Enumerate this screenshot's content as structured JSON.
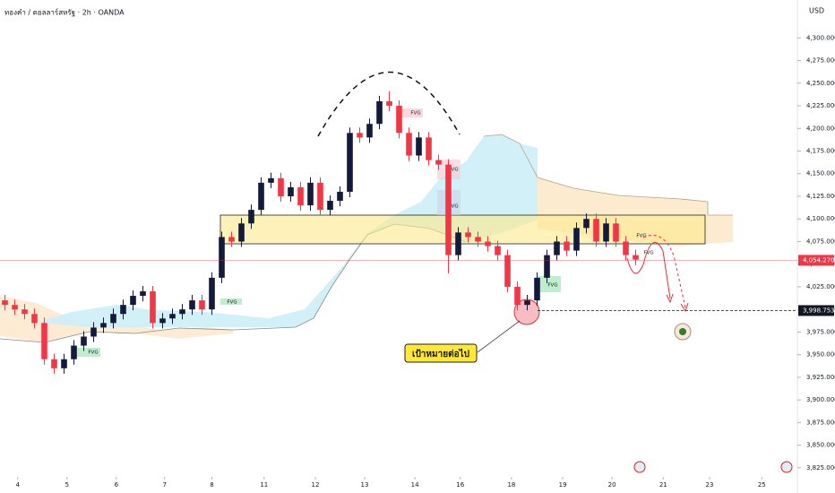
{
  "chart_data": {
    "type": "candlestick",
    "title": "ทองคำ / ดอลลาร์สหรัฐ · 2h · OANDA",
    "currency": "USD",
    "up_color": "#131a3a",
    "down_color": "#f23645",
    "open": [
      4010,
      4005,
      4000,
      3995,
      3985,
      3945,
      3935,
      3945,
      3960,
      3970,
      3980,
      3985,
      3995,
      4005,
      4015,
      4020,
      3985,
      3990,
      3995,
      4000,
      4010,
      4000,
      4035,
      4080,
      4075,
      4095,
      4110,
      4140,
      4145,
      4125,
      4135,
      4115,
      4140,
      4110,
      4120,
      4130,
      4195,
      4190,
      4205,
      4230,
      4225,
      4195,
      4170,
      4190,
      4165,
      4160,
      4060,
      4085,
      4080,
      4075,
      4070,
      4060,
      4025,
      4005,
      4010,
      4035,
      4060,
      4075,
      4065,
      4090,
      4100,
      4075,
      4095,
      4075,
      4060
    ],
    "high": [
      4016,
      4011,
      4006,
      4001,
      3991,
      3951,
      3951,
      3966,
      3976,
      3986,
      3991,
      4001,
      4011,
      4021,
      4026,
      4026,
      3996,
      4001,
      4006,
      4016,
      4016,
      4041,
      4086,
      4086,
      4101,
      4116,
      4146,
      4151,
      4151,
      4141,
      4141,
      4146,
      4146,
      4126,
      4136,
      4201,
      4201,
      4211,
      4236,
      4241,
      4231,
      4201,
      4196,
      4196,
      4171,
      4166,
      4091,
      4091,
      4086,
      4081,
      4076,
      4066,
      4031,
      4016,
      4041,
      4066,
      4081,
      4081,
      4096,
      4106,
      4106,
      4101,
      4101,
      4081,
      4066
    ],
    "low": [
      3999,
      3994,
      3989,
      3979,
      3939,
      3929,
      3929,
      3939,
      3954,
      3964,
      3974,
      3979,
      3989,
      3999,
      4009,
      3979,
      3979,
      3984,
      3989,
      3994,
      3994,
      3994,
      4029,
      4069,
      4069,
      4089,
      4104,
      4134,
      4119,
      4119,
      4109,
      4109,
      4104,
      4104,
      4114,
      4124,
      4184,
      4184,
      4199,
      4219,
      4189,
      4164,
      4164,
      4159,
      4154,
      4040,
      4054,
      4074,
      4069,
      4064,
      4054,
      4019,
      3999,
      3999,
      4004,
      4029,
      4054,
      4059,
      4059,
      4084,
      4069,
      4069,
      4069,
      4054,
      4049
    ],
    "close": [
      4005,
      4000,
      3995,
      3985,
      3945,
      3935,
      3945,
      3960,
      3970,
      3980,
      3985,
      3995,
      4005,
      4015,
      4020,
      3985,
      3990,
      3995,
      4000,
      4010,
      4000,
      4035,
      4080,
      4075,
      4095,
      4110,
      4140,
      4145,
      4125,
      4135,
      4115,
      4140,
      4110,
      4120,
      4130,
      4195,
      4190,
      4205,
      4230,
      4225,
      4195,
      4170,
      4190,
      4165,
      4160,
      4060,
      4085,
      4080,
      4075,
      4070,
      4060,
      4025,
      4005,
      4010,
      4035,
      4060,
      4075,
      4065,
      4090,
      4100,
      4075,
      4095,
      4075,
      4060,
      4055
    ],
    "xlim": [
      0,
      81
    ],
    "xticks": [
      {
        "value": 1.8,
        "label": "4"
      },
      {
        "value": 6.8,
        "label": "5"
      },
      {
        "value": 11.8,
        "label": "6"
      },
      {
        "value": 16.7,
        "label": "7"
      },
      {
        "value": 21.5,
        "label": "8"
      },
      {
        "value": 26.8,
        "label": "11"
      },
      {
        "value": 32,
        "label": "12"
      },
      {
        "value": 37,
        "label": "13"
      },
      {
        "value": 42.1,
        "label": "14"
      },
      {
        "value": 46.7,
        "label": "16"
      },
      {
        "value": 51.9,
        "label": "18"
      },
      {
        "value": 57.1,
        "label": "19"
      },
      {
        "value": 62.1,
        "label": "20"
      },
      {
        "value": 67.3,
        "label": "21"
      },
      {
        "value": 72,
        "label": "23"
      },
      {
        "value": 77.3,
        "label": "25"
      }
    ],
    "ylim": [
      3815,
      4330
    ],
    "yticks": [
      {
        "value": 3825,
        "label": "3,825.000"
      },
      {
        "value": 3850,
        "label": "3,850.000"
      },
      {
        "value": 3875,
        "label": "3,875.000"
      },
      {
        "value": 3900,
        "label": "3,900.000"
      },
      {
        "value": 3925,
        "label": "3,925.000"
      },
      {
        "value": 3950,
        "label": "3,950.000"
      },
      {
        "value": 3975,
        "label": "3,975.000"
      },
      {
        "value": 4000,
        "label": "4,000.000"
      },
      {
        "value": 4025,
        "label": "4,025.000"
      },
      {
        "value": 4050,
        "label": "4,050.000"
      },
      {
        "value": 4075,
        "label": "4,075.000"
      },
      {
        "value": 4100,
        "label": "4,100.000"
      },
      {
        "value": 4125,
        "label": "4,125.000"
      },
      {
        "value": 4150,
        "label": "4,150.000"
      },
      {
        "value": 4175,
        "label": "4,175.000"
      },
      {
        "value": 4200,
        "label": "4,200.000"
      },
      {
        "value": 4225,
        "label": "4,225.000"
      },
      {
        "value": 4250,
        "label": "4,250.000"
      },
      {
        "value": 4275,
        "label": "4,275.000"
      },
      {
        "value": 4300,
        "label": "4,300.000"
      }
    ],
    "price_lines": [
      {
        "value": 4054.27,
        "label": "4,054.270",
        "color": "#f23645"
      },
      {
        "value": 3998.753,
        "label": "3,998.753",
        "color": "#131722"
      }
    ],
    "annotations": [
      "FVG",
      "FVG",
      "FVG",
      "FVG",
      "FVG",
      "FVG",
      "FVG",
      "FVG",
      "เป้าหมายต่อไป"
    ]
  }
}
